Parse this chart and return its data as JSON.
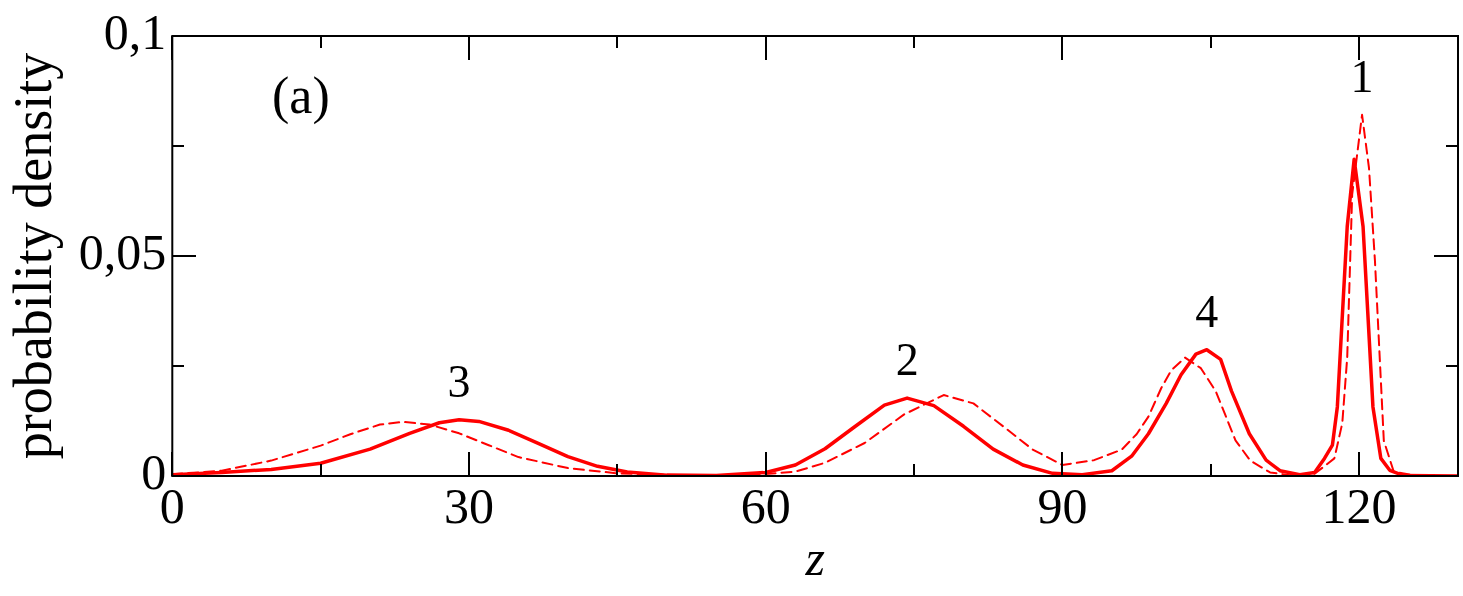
{
  "chart_data": {
    "type": "line",
    "xlabel": "z",
    "ylabel": "probability density",
    "xlim": [
      0,
      130
    ],
    "xticks": [
      0,
      {
        "value": 15,
        "label": null
      },
      30,
      {
        "value": 45,
        "label": null
      },
      60,
      {
        "value": 75,
        "label": null
      },
      90,
      {
        "value": 105,
        "label": null
      },
      120
    ],
    "ylim": [
      0,
      0.1
    ],
    "yticks": [
      0,
      {
        "value": 0.025,
        "label": null
      },
      {
        "value": 0.05,
        "label": "0,05"
      },
      {
        "value": 0.075,
        "label": null
      },
      {
        "value": 0.1,
        "label": "0,1"
      }
    ],
    "grid": false,
    "legend": false,
    "marker": "none",
    "annotations": [
      "(a)",
      {
        "text": "3",
        "x": 29,
        "y": 0.0128
      },
      {
        "text": "2",
        "x": 74.3,
        "y": 0.0177
      },
      {
        "text": "4",
        "x": 104.6,
        "y": 0.0287
      },
      {
        "text": "1",
        "x": 120.3,
        "y": 0.0821
      }
    ],
    "series": [
      {
        "color": "#ff0000",
        "line_style": "solid",
        "x": [
          0,
          5,
          10,
          15,
          20,
          24,
          27,
          29,
          31,
          34,
          37,
          40,
          43,
          46,
          50,
          55,
          60,
          63,
          66,
          69,
          72,
          74.3,
          77,
          80,
          83,
          86,
          89,
          92,
          95,
          97,
          98.7,
          100.5,
          102,
          103.5,
          104.6,
          106,
          107.1,
          108.9,
          110.6,
          112,
          114,
          115.5,
          116.5,
          117.3,
          117.8,
          118.8,
          119.5,
          120.4,
          121.4,
          122.2,
          123.1,
          124.5,
          130
        ],
        "values": [
          0.0003,
          0.0008,
          0.0015,
          0.0029,
          0.0061,
          0.0097,
          0.0121,
          0.0128,
          0.0124,
          0.0104,
          0.0074,
          0.0044,
          0.0022,
          0.0009,
          0.0002,
          0.0001,
          0.0008,
          0.0025,
          0.0062,
          0.0112,
          0.0161,
          0.0177,
          0.016,
          0.0113,
          0.0061,
          0.0025,
          0.0006,
          0.0003,
          0.0012,
          0.0045,
          0.0096,
          0.0165,
          0.023,
          0.0277,
          0.0287,
          0.0265,
          0.0193,
          0.0096,
          0.0036,
          0.0012,
          0.0003,
          0.0008,
          0.004,
          0.007,
          0.0157,
          0.0567,
          0.072,
          0.0567,
          0.0157,
          0.004,
          0.0013,
          0.0001,
          0
        ]
      },
      {
        "color": "#ff0000",
        "line_style": "dashed",
        "x": [
          0,
          5,
          10,
          15,
          18,
          21,
          23.3,
          26,
          29,
          32,
          35,
          40,
          45,
          52,
          58,
          63,
          66,
          70,
          74,
          78,
          81,
          84,
          87,
          90,
          93.2,
          96,
          97.5,
          98.7,
          100,
          101,
          102.4,
          104,
          105.5,
          107.5,
          109,
          111,
          113,
          115.5,
          117.5,
          118.3,
          118.8,
          119.3,
          120.3,
          121,
          121.6,
          122.5,
          123.5,
          126,
          130
        ],
        "values": [
          0.0004,
          0.0012,
          0.0035,
          0.0069,
          0.0095,
          0.0117,
          0.0123,
          0.0117,
          0.0097,
          0.007,
          0.0043,
          0.0018,
          0.0006,
          0.0001,
          0.0001,
          0.001,
          0.003,
          0.0075,
          0.014,
          0.0184,
          0.0165,
          0.0113,
          0.006,
          0.0025,
          0.0036,
          0.006,
          0.0095,
          0.0135,
          0.02,
          0.024,
          0.0269,
          0.0245,
          0.0193,
          0.0081,
          0.0035,
          0.0008,
          0.0002,
          0.0005,
          0.004,
          0.012,
          0.027,
          0.064,
          0.0821,
          0.07,
          0.049,
          0.008,
          0.001,
          0,
          0
        ]
      }
    ]
  }
}
